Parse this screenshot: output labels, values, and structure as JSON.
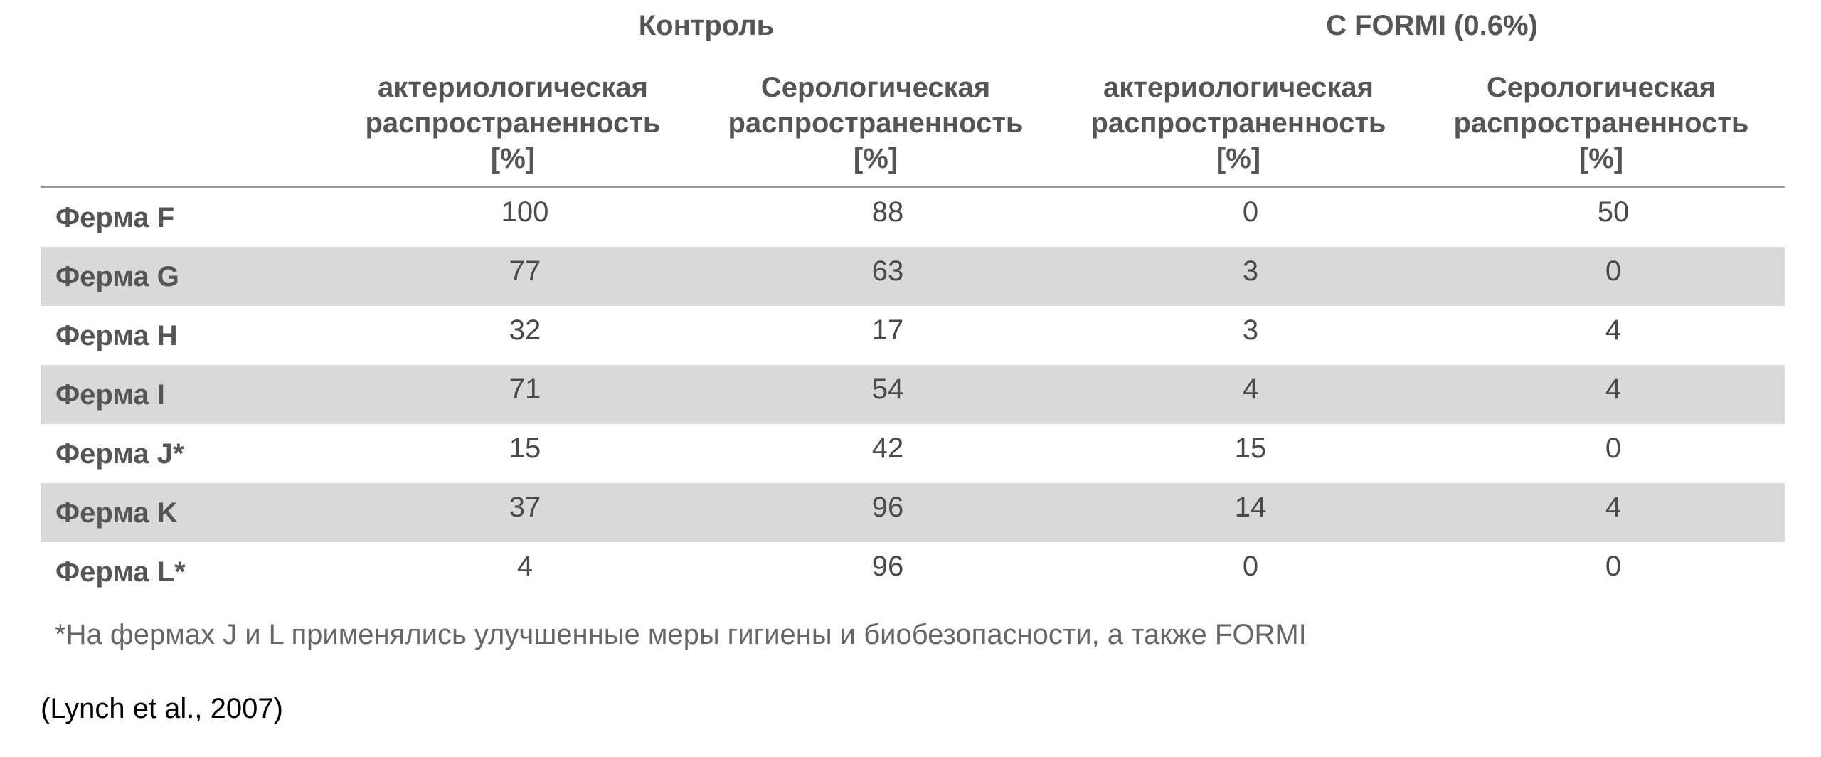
{
  "groups": {
    "control": "Контроль",
    "formi": "C FORMI (0.6%)"
  },
  "columns": [
    {
      "line1": "актериологическая",
      "line2": "распространенность",
      "line3": "[%]"
    },
    {
      "line1": "Серологическая",
      "line2": "распространенность",
      "line3": "[%]"
    },
    {
      "line1": "актериологическая",
      "line2": "распространенность",
      "line3": "[%]"
    },
    {
      "line1": "Серологическая",
      "line2": "распространенность",
      "line3": "[%]"
    }
  ],
  "rows": [
    {
      "label": "Ферма F",
      "values": [
        "100",
        "88",
        "0",
        "50"
      ]
    },
    {
      "label": "Ферма G",
      "values": [
        "77",
        "63",
        "3",
        "0"
      ]
    },
    {
      "label": "Ферма H",
      "values": [
        "32",
        "17",
        "3",
        "4"
      ]
    },
    {
      "label": "Ферма I",
      "values": [
        "71",
        "54",
        "4",
        "4"
      ]
    },
    {
      "label": "Ферма J*",
      "values": [
        "15",
        "42",
        "15",
        "0"
      ]
    },
    {
      "label": "Ферма K",
      "values": [
        "37",
        "96",
        "14",
        "4"
      ]
    },
    {
      "label": "Ферма L*",
      "values": [
        "4",
        "96",
        "0",
        "0"
      ]
    }
  ],
  "footnote": "*На фермах J и L применялись улучшенные меры гигиены и биобезопасности, а также FORMI",
  "source": "(Lynch et al., 2007)"
}
